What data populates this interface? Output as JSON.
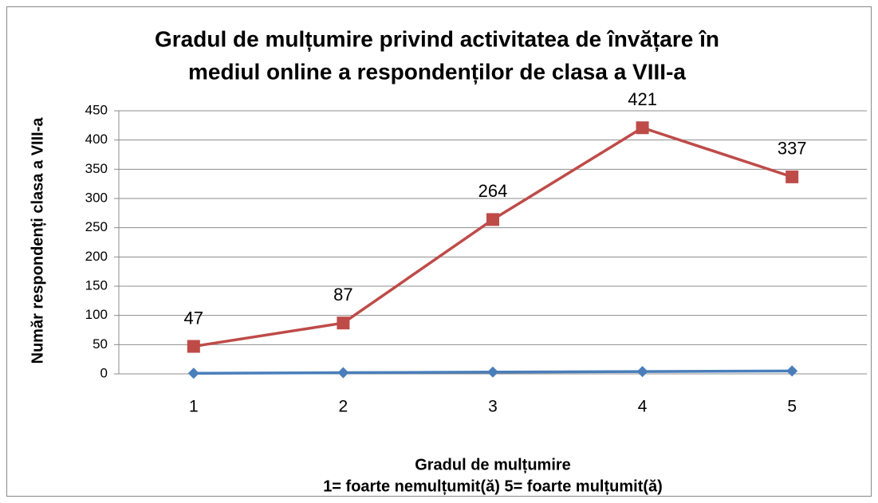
{
  "chart_data": {
    "type": "line",
    "title": [
      "Gradul de mulțumire privind activitatea de învățare în",
      "mediul online a respondenților de clasa a VIII-a"
    ],
    "xlabel": [
      "Gradul de mulțumire",
      "1= foarte nemulțumit(ă)  5= foarte mulțumit(ă)"
    ],
    "ylabel": "Număr respondenți  clasa a VIII-a",
    "categories": [
      "1",
      "2",
      "3",
      "4",
      "5"
    ],
    "series": [
      {
        "color": "#4a7ebb",
        "marker": "diamond",
        "show_labels": false,
        "values": [
          1,
          2,
          3,
          4,
          5
        ]
      },
      {
        "color": "#be4b48",
        "marker": "square",
        "show_labels": true,
        "values": [
          47,
          87,
          264,
          421,
          337
        ]
      }
    ],
    "ylim": [
      0,
      450
    ],
    "yticks": [
      0,
      50,
      100,
      150,
      200,
      250,
      300,
      350,
      400,
      450
    ],
    "grid": true
  }
}
